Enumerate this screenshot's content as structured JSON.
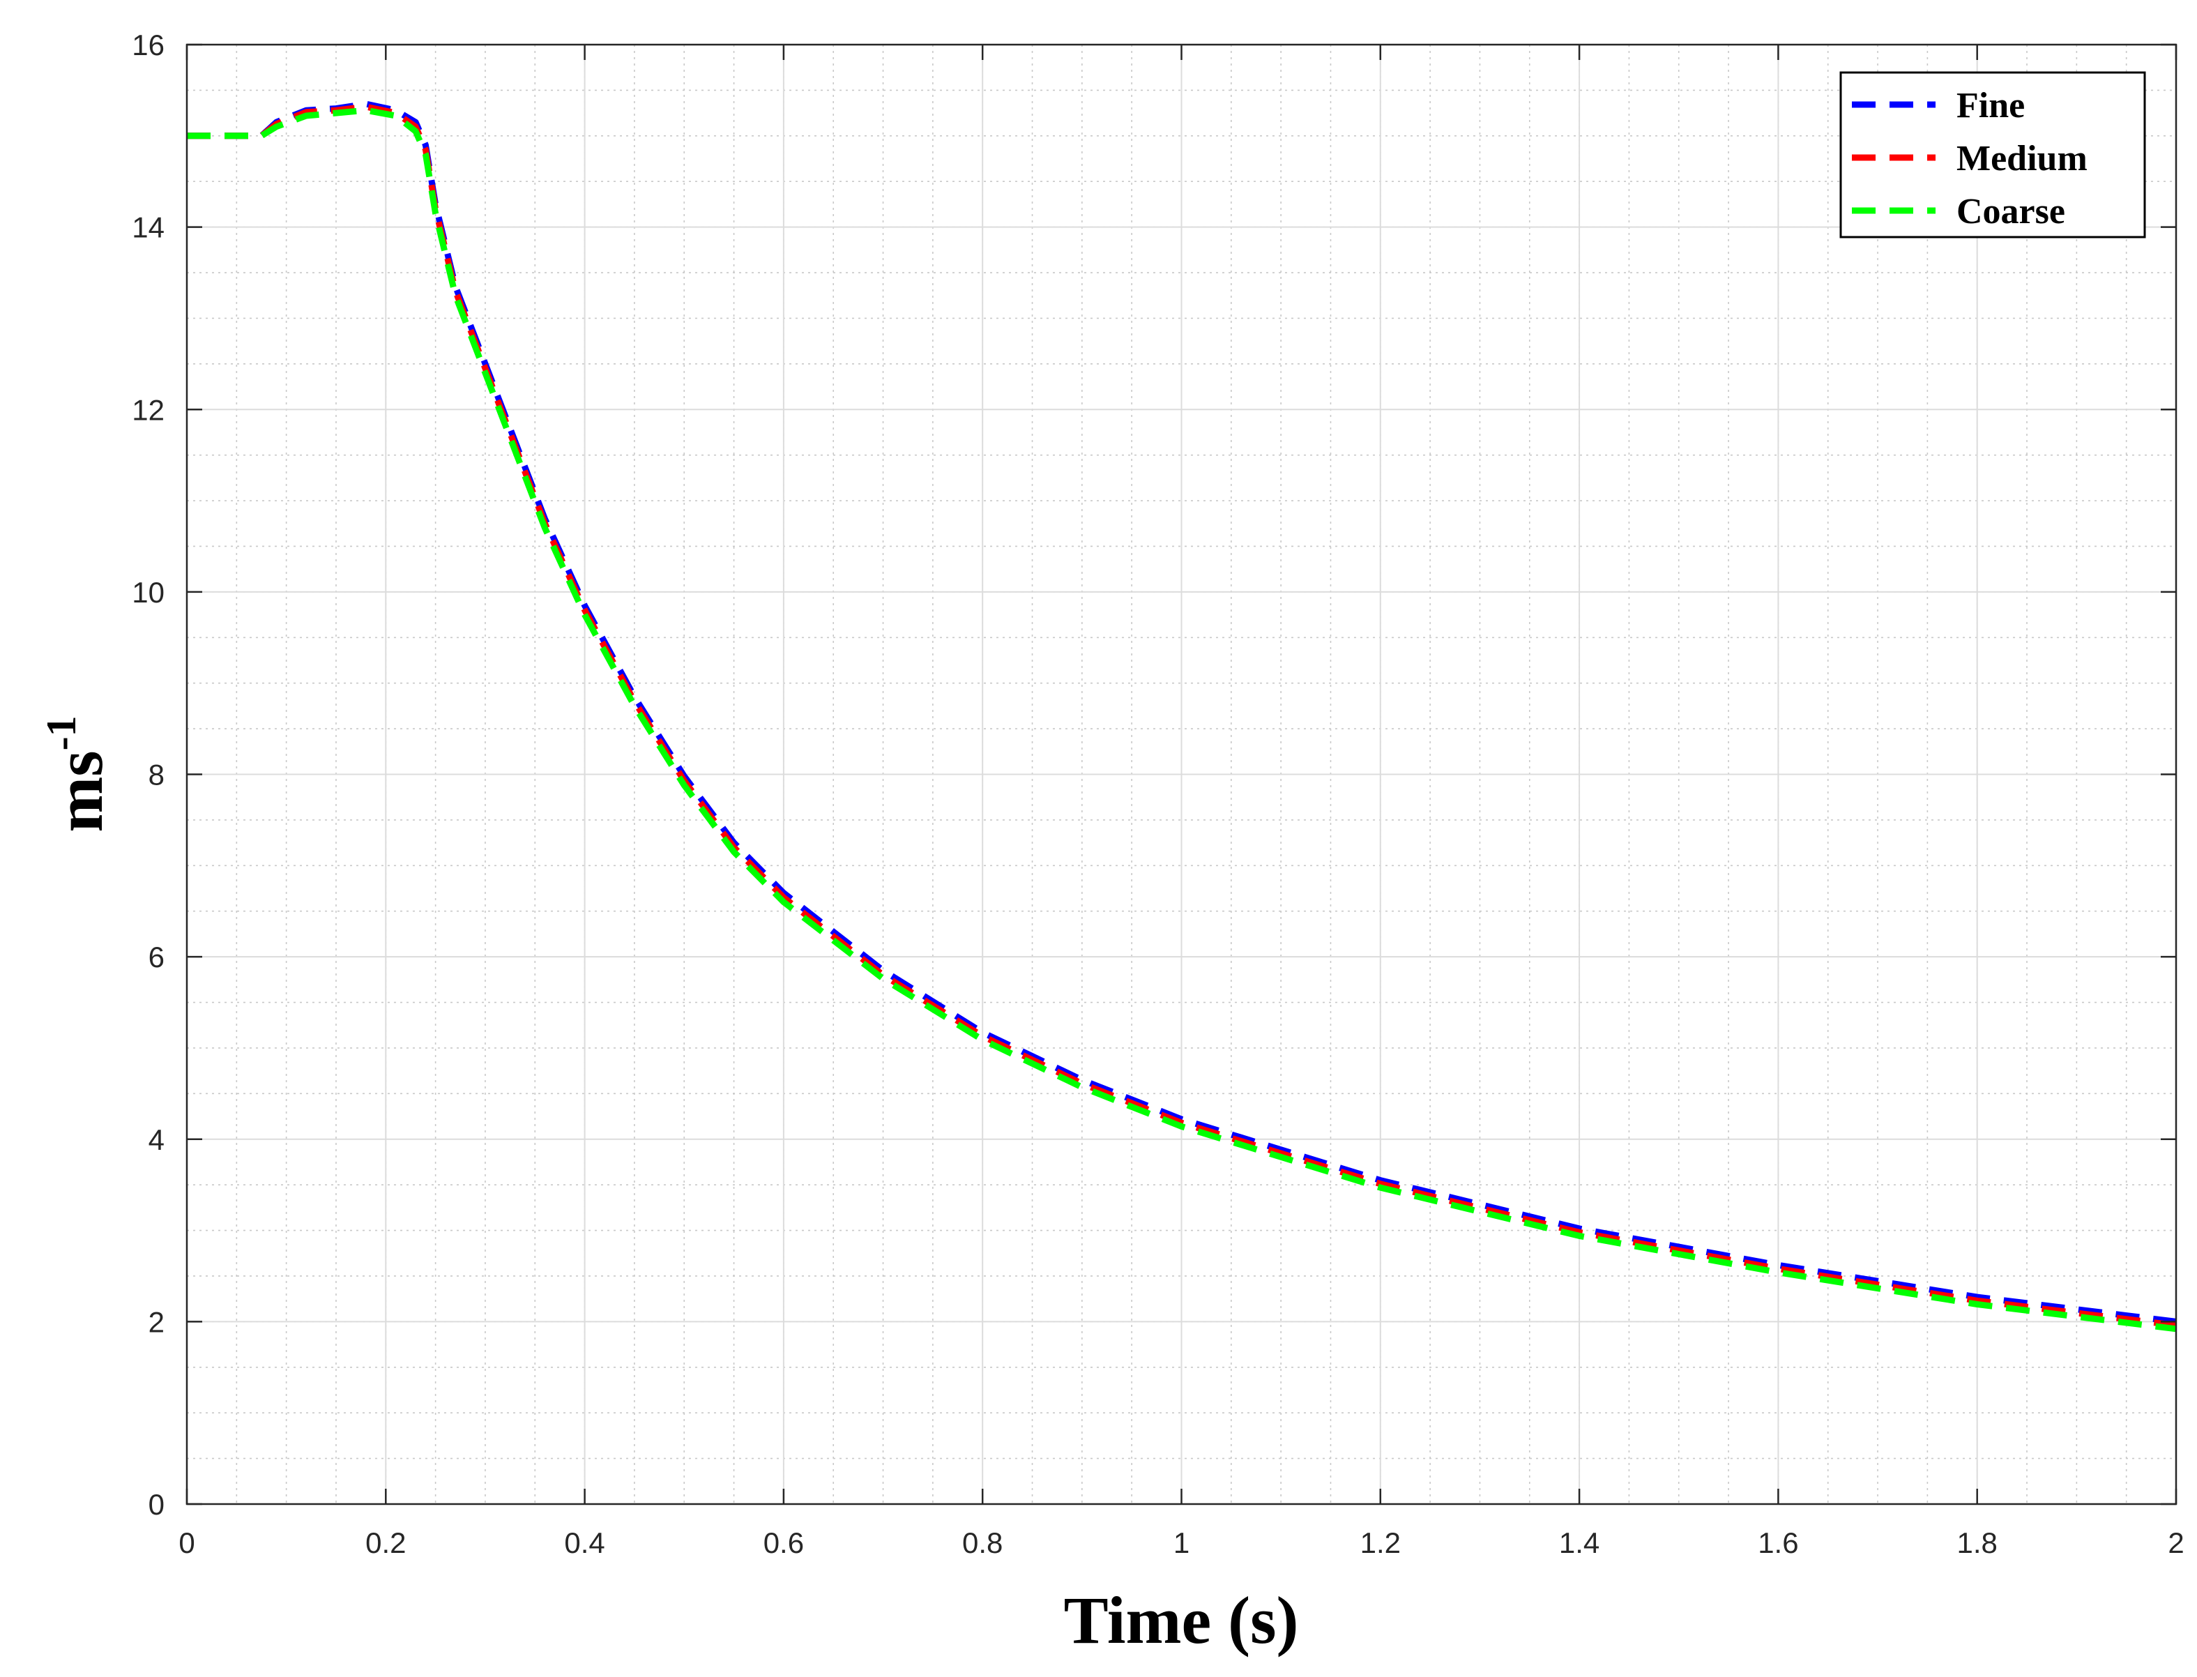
{
  "chart_data": {
    "type": "line",
    "xlabel": "Time (s)",
    "ylabel": {
      "base": "ms",
      "superscript": "-1"
    },
    "xlim": [
      0,
      2
    ],
    "ylim": [
      0,
      16
    ],
    "xticks": [
      0,
      0.2,
      0.4,
      0.6,
      0.8,
      1,
      1.2,
      1.4,
      1.6,
      1.8,
      2
    ],
    "yticks": [
      0,
      2,
      4,
      6,
      8,
      10,
      12,
      14,
      16
    ],
    "grid": {
      "major": true,
      "minor": true,
      "x_minor_step": 0.05,
      "y_minor_step": 0.5
    },
    "legend": {
      "position": "top-right"
    },
    "line_style": "dashed",
    "series": [
      {
        "name": "Fine",
        "color": "#0000ff",
        "x": [
          0,
          0.04,
          0.075,
          0.09,
          0.12,
          0.15,
          0.18,
          0.21,
          0.23,
          0.24,
          0.25,
          0.27,
          0.3,
          0.33,
          0.36,
          0.4,
          0.45,
          0.5,
          0.55,
          0.6,
          0.7,
          0.8,
          0.9,
          1.0,
          1.2,
          1.4,
          1.6,
          1.8,
          2.0
        ],
        "y": [
          15.0,
          15.0,
          15.0,
          15.15,
          15.28,
          15.3,
          15.35,
          15.28,
          15.15,
          14.9,
          14.25,
          13.35,
          12.5,
          11.65,
          10.8,
          9.85,
          8.85,
          7.98,
          7.25,
          6.7,
          5.85,
          5.17,
          4.65,
          4.22,
          3.55,
          3.02,
          2.62,
          2.27,
          2.0
        ]
      },
      {
        "name": "Medium",
        "color": "#ff0000",
        "x": [
          0,
          0.04,
          0.075,
          0.09,
          0.12,
          0.15,
          0.18,
          0.21,
          0.23,
          0.24,
          0.25,
          0.27,
          0.3,
          0.33,
          0.36,
          0.4,
          0.45,
          0.5,
          0.55,
          0.6,
          0.7,
          0.8,
          0.9,
          1.0,
          1.2,
          1.4,
          1.6,
          1.8,
          2.0
        ],
        "y": [
          15.0,
          15.0,
          15.0,
          15.13,
          15.26,
          15.28,
          15.32,
          15.25,
          15.1,
          14.85,
          14.2,
          13.3,
          12.45,
          11.6,
          10.75,
          9.8,
          8.8,
          7.93,
          7.2,
          6.65,
          5.8,
          5.13,
          4.61,
          4.18,
          3.51,
          2.98,
          2.58,
          2.23,
          1.96
        ]
      },
      {
        "name": "Coarse",
        "color": "#00ff00",
        "x": [
          0,
          0.04,
          0.075,
          0.09,
          0.12,
          0.15,
          0.18,
          0.21,
          0.23,
          0.24,
          0.25,
          0.27,
          0.3,
          0.33,
          0.36,
          0.4,
          0.45,
          0.5,
          0.55,
          0.6,
          0.7,
          0.8,
          0.9,
          1.0,
          1.2,
          1.4,
          1.6,
          1.8,
          2.0
        ],
        "y": [
          15.0,
          15.0,
          15.0,
          15.1,
          15.22,
          15.25,
          15.28,
          15.22,
          15.05,
          14.8,
          14.15,
          13.25,
          12.4,
          11.55,
          10.7,
          9.75,
          8.75,
          7.88,
          7.15,
          6.6,
          5.76,
          5.09,
          4.57,
          4.14,
          3.47,
          2.94,
          2.54,
          2.19,
          1.92
        ]
      }
    ]
  }
}
